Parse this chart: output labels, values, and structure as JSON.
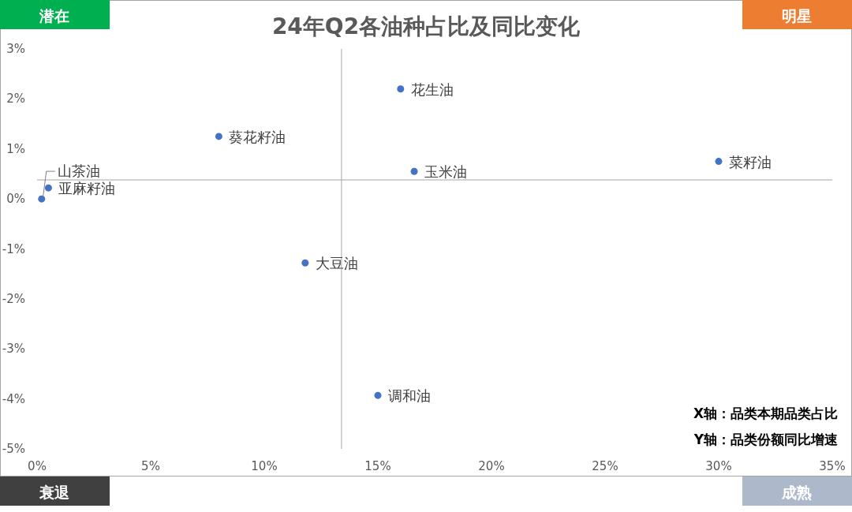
{
  "chart_data": {
    "type": "scatter",
    "title": "24年Q2各油种占比及同比变化",
    "marker": "circle",
    "xlim": [
      0,
      35
    ],
    "ylim": [
      -5,
      3
    ],
    "xticks": [
      {
        "value": 0,
        "label": "0%"
      },
      {
        "value": 5,
        "label": "5%"
      },
      {
        "value": 10,
        "label": "10%"
      },
      {
        "value": 15,
        "label": "15%"
      },
      {
        "value": 20,
        "label": "20%"
      },
      {
        "value": 25,
        "label": "25%"
      },
      {
        "value": 30,
        "label": "30%"
      },
      {
        "value": 35,
        "label": "35%"
      }
    ],
    "yticks": [
      {
        "value": 3,
        "label": "3%"
      },
      {
        "value": 2,
        "label": "2%"
      },
      {
        "value": 1,
        "label": "1%"
      },
      {
        "value": 0,
        "label": "0%"
      },
      {
        "value": -1,
        "label": "-1%"
      },
      {
        "value": -2,
        "label": "-2%"
      },
      {
        "value": -3,
        "label": "-3%"
      },
      {
        "value": -4,
        "label": "-4%"
      },
      {
        "value": -5,
        "label": "-5%"
      }
    ],
    "series": [
      {
        "name": "花生油",
        "color": "#4472c4",
        "x": [
          16.0
        ],
        "values": [
          2.2
        ]
      },
      {
        "name": "葵花籽油",
        "color": "#4472c4",
        "x": [
          8.0
        ],
        "values": [
          1.25
        ]
      },
      {
        "name": "亚麻籽油",
        "color": "#4472c4",
        "x": [
          0.5
        ],
        "values": [
          0.22
        ]
      },
      {
        "name": "山茶油",
        "color": "#4472c4",
        "x": [
          0.2
        ],
        "values": [
          0.0
        ]
      },
      {
        "name": "玉米油",
        "color": "#4472c4",
        "x": [
          16.6
        ],
        "values": [
          0.55
        ]
      },
      {
        "name": "菜籽油",
        "color": "#4472c4",
        "x": [
          30.0
        ],
        "values": [
          0.75
        ]
      },
      {
        "name": "大豆油",
        "color": "#4472c4",
        "x": [
          11.8
        ],
        "values": [
          -1.28
        ]
      },
      {
        "name": "调和油",
        "color": "#4472c4",
        "x": [
          15.0
        ],
        "values": [
          -3.93
        ]
      }
    ],
    "ref_lines": [
      {
        "axis": "x",
        "value": 13.4,
        "color": "#a6a6a6"
      },
      {
        "axis": "y",
        "value": 0.38,
        "color": "#a6a6a6"
      }
    ],
    "annotations": [
      "潜在",
      "明星",
      "衰退",
      "成熟",
      "X轴：品类本期品类占比",
      "Y轴：品类份额同比增速"
    ]
  }
}
